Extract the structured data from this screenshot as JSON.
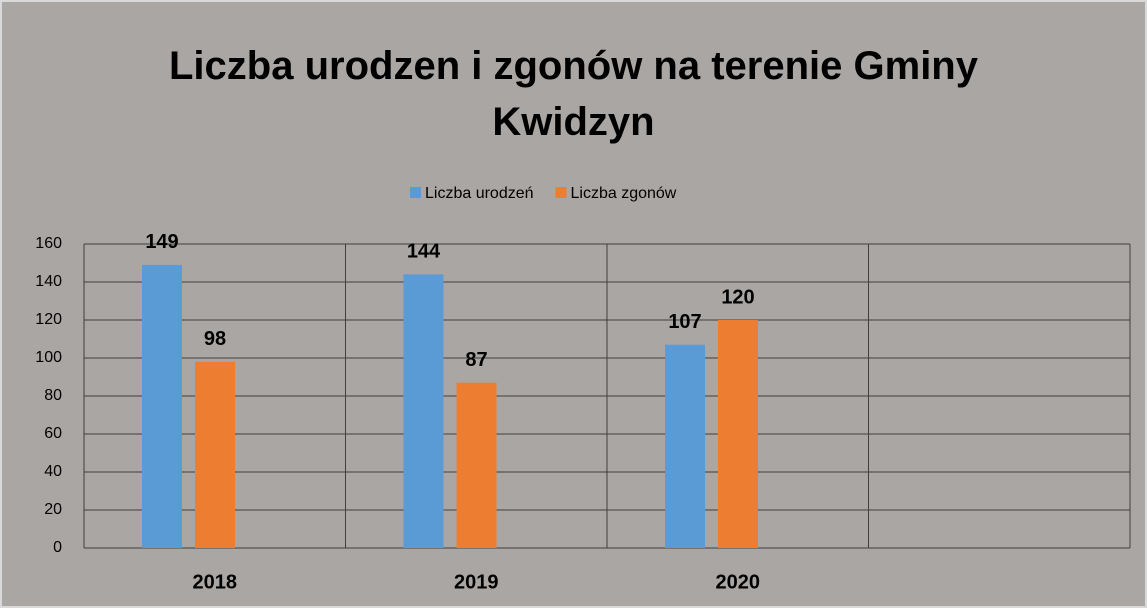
{
  "chart_data": {
    "type": "bar",
    "title": "Liczba urodzen i zgonów na terenie Gminy Kwidzyn",
    "categories": [
      "2018",
      "2019",
      "2020",
      null
    ],
    "series": [
      {
        "name": "Liczba urodzeń",
        "color": "#5b9bd5",
        "values": [
          149,
          144,
          107,
          null
        ]
      },
      {
        "name": "Liczba zgonów",
        "color": "#ed7d31",
        "values": [
          98,
          87,
          120,
          null
        ]
      }
    ],
    "ylim": [
      0,
      160
    ],
    "yticks": [
      0,
      20,
      40,
      60,
      80,
      100,
      120,
      140,
      160
    ],
    "grid": true,
    "legend": "top"
  }
}
